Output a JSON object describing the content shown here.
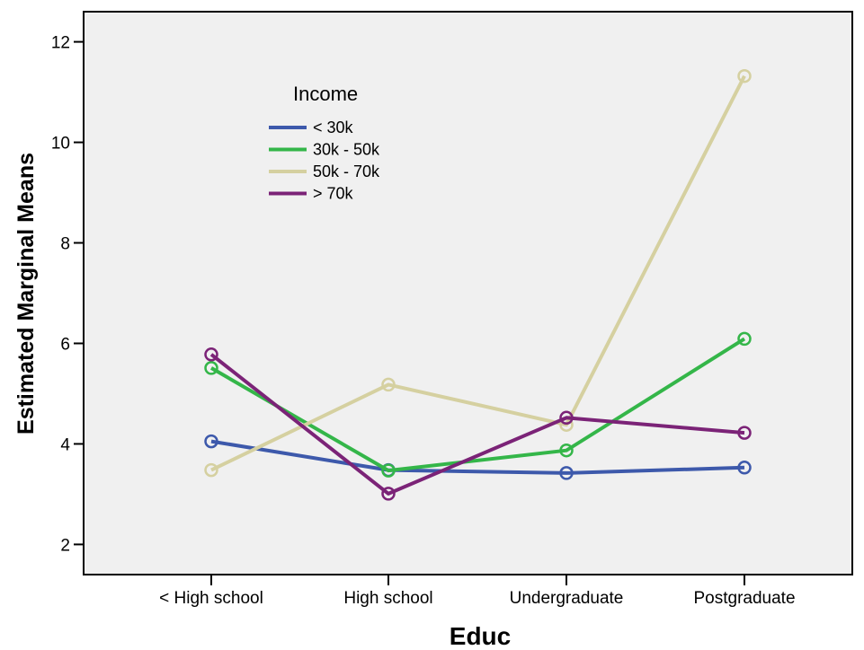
{
  "chart_data": {
    "type": "line",
    "title": "",
    "xlabel": "Educ",
    "ylabel": "Estimated Marginal Means",
    "categories": [
      "< High school",
      "High school",
      "Undergraduate",
      "Postgraduate"
    ],
    "ylim": [
      1.4,
      12.6
    ],
    "yticks": [
      2,
      4,
      6,
      8,
      10,
      12
    ],
    "grid": false,
    "legend": {
      "title": "Income",
      "placement": "top-left"
    },
    "series": [
      {
        "name": "< 30k",
        "color": "#3d59ab",
        "values": [
          4.05,
          3.48,
          3.42,
          3.53
        ]
      },
      {
        "name": "30k - 50k",
        "color": "#34b649",
        "values": [
          5.51,
          3.47,
          3.87,
          6.09
        ]
      },
      {
        "name": "50k - 70k",
        "color": "#d5d0a0",
        "values": [
          3.48,
          5.18,
          4.38,
          11.32
        ]
      },
      {
        "name": "> 70k",
        "color": "#7b2377",
        "values": [
          5.78,
          3.01,
          4.52,
          4.22
        ]
      }
    ],
    "plot_background": "#f0f0f0"
  }
}
